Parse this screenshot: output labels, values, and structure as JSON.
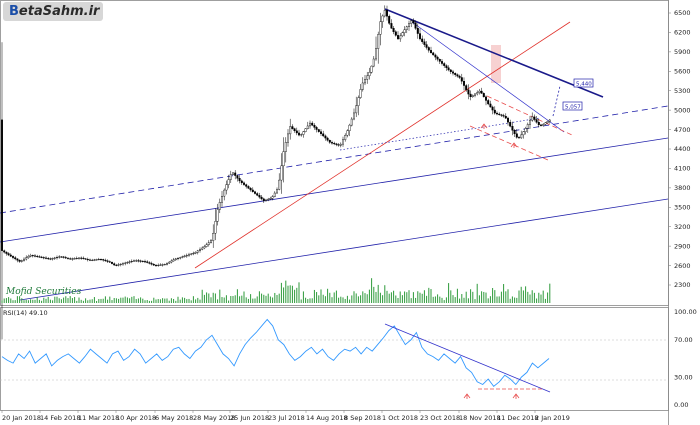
{
  "logo": {
    "mark": "B",
    "text": "etaSahm.ir"
  },
  "watermark": "Mofid Securities",
  "rsi_label": "RSI(14) 49.10",
  "price_box_1": "5,440",
  "price_box_2": "5,057",
  "colors": {
    "bull": "#000000",
    "bear": "#000000",
    "channel": "#2222aa",
    "trend_red": "#e0302a",
    "rsi_line": "#3399ff",
    "volume": "#2e9a3a",
    "dashed_red": "#e84c4c"
  },
  "chart_data": [
    {
      "type": "candlestick",
      "title": "",
      "y_ticks": [
        6500,
        6200,
        5900,
        5600,
        5300,
        5000,
        4700,
        4400,
        4100,
        3800,
        3500,
        3200,
        2900,
        2600,
        2300
      ],
      "x_ticks": [
        "20 Jan 2018",
        "14 Feb 2018",
        "11 Mar 2018",
        "10 Apr 2018",
        "6 May 2018",
        "28 May 2018",
        "25 Jun 2018",
        "23 Jul 2018",
        "14 Aug 2018",
        "8 Sep 2018",
        "1 Oct 2018",
        "23 Oct 2018",
        "18 Nov 2018",
        "11 Dec 2018",
        "2 Jan 2019"
      ],
      "ylim": [
        2000,
        6700
      ],
      "price_path": [
        [
          0,
          2850
        ],
        [
          10,
          2750
        ],
        [
          20,
          2660
        ],
        [
          30,
          2760
        ],
        [
          40,
          2730
        ],
        [
          50,
          2700
        ],
        [
          60,
          2740
        ],
        [
          70,
          2700
        ],
        [
          80,
          2720
        ],
        [
          90,
          2680
        ],
        [
          100,
          2700
        ],
        [
          110,
          2650
        ],
        [
          115,
          2600
        ],
        [
          125,
          2640
        ],
        [
          135,
          2680
        ],
        [
          145,
          2660
        ],
        [
          155,
          2600
        ],
        [
          165,
          2620
        ],
        [
          175,
          2700
        ],
        [
          185,
          2750
        ],
        [
          195,
          2800
        ],
        [
          205,
          2900
        ],
        [
          212,
          3000
        ],
        [
          218,
          3500
        ],
        [
          225,
          3800
        ],
        [
          232,
          4050
        ],
        [
          240,
          3900
        ],
        [
          248,
          3800
        ],
        [
          256,
          3700
        ],
        [
          264,
          3600
        ],
        [
          272,
          3650
        ],
        [
          278,
          3800
        ],
        [
          284,
          4400
        ],
        [
          290,
          4750
        ],
        [
          300,
          4600
        ],
        [
          310,
          4800
        ],
        [
          320,
          4650
        ],
        [
          330,
          4500
        ],
        [
          340,
          4450
        ],
        [
          348,
          4700
        ],
        [
          355,
          5000
        ],
        [
          362,
          5400
        ],
        [
          370,
          5600
        ],
        [
          375,
          5850
        ],
        [
          380,
          6350
        ],
        [
          385,
          6550
        ],
        [
          390,
          6300
        ],
        [
          398,
          6100
        ],
        [
          405,
          6250
        ],
        [
          412,
          6400
        ],
        [
          420,
          6100
        ],
        [
          430,
          5900
        ],
        [
          440,
          5750
        ],
        [
          450,
          5600
        ],
        [
          460,
          5500
        ],
        [
          470,
          5200
        ],
        [
          480,
          5300
        ],
        [
          488,
          5100
        ],
        [
          495,
          4950
        ],
        [
          505,
          4900
        ],
        [
          512,
          4700
        ],
        [
          518,
          4550
        ],
        [
          525,
          4700
        ],
        [
          532,
          4900
        ],
        [
          540,
          4750
        ],
        [
          545,
          4800
        ],
        [
          550,
          4850
        ]
      ],
      "annotations": [
        "5,440",
        "5,057"
      ]
    },
    {
      "type": "line",
      "title": "RSI(14) 49.10",
      "y_ticks": [
        100.0,
        70.0,
        30.0,
        0.0
      ],
      "ylim": [
        0,
        100
      ],
      "values": [
        52,
        48,
        45,
        55,
        50,
        58,
        45,
        50,
        55,
        42,
        48,
        52,
        55,
        50,
        45,
        52,
        60,
        55,
        50,
        45,
        55,
        58,
        48,
        52,
        60,
        55,
        45,
        50,
        55,
        48,
        52,
        60,
        62,
        55,
        50,
        58,
        62,
        70,
        75,
        65,
        55,
        50,
        42,
        55,
        65,
        72,
        78,
        85,
        92,
        85,
        70,
        65,
        55,
        48,
        52,
        58,
        62,
        55,
        60,
        52,
        48,
        55,
        60,
        58,
        62,
        55,
        62,
        58,
        65,
        72,
        80,
        85,
        75,
        65,
        70,
        78,
        62,
        55,
        52,
        48,
        55,
        50,
        45,
        52,
        40,
        35,
        25,
        22,
        28,
        20,
        25,
        32,
        28,
        22,
        30,
        35,
        45,
        40,
        45,
        50
      ]
    }
  ]
}
